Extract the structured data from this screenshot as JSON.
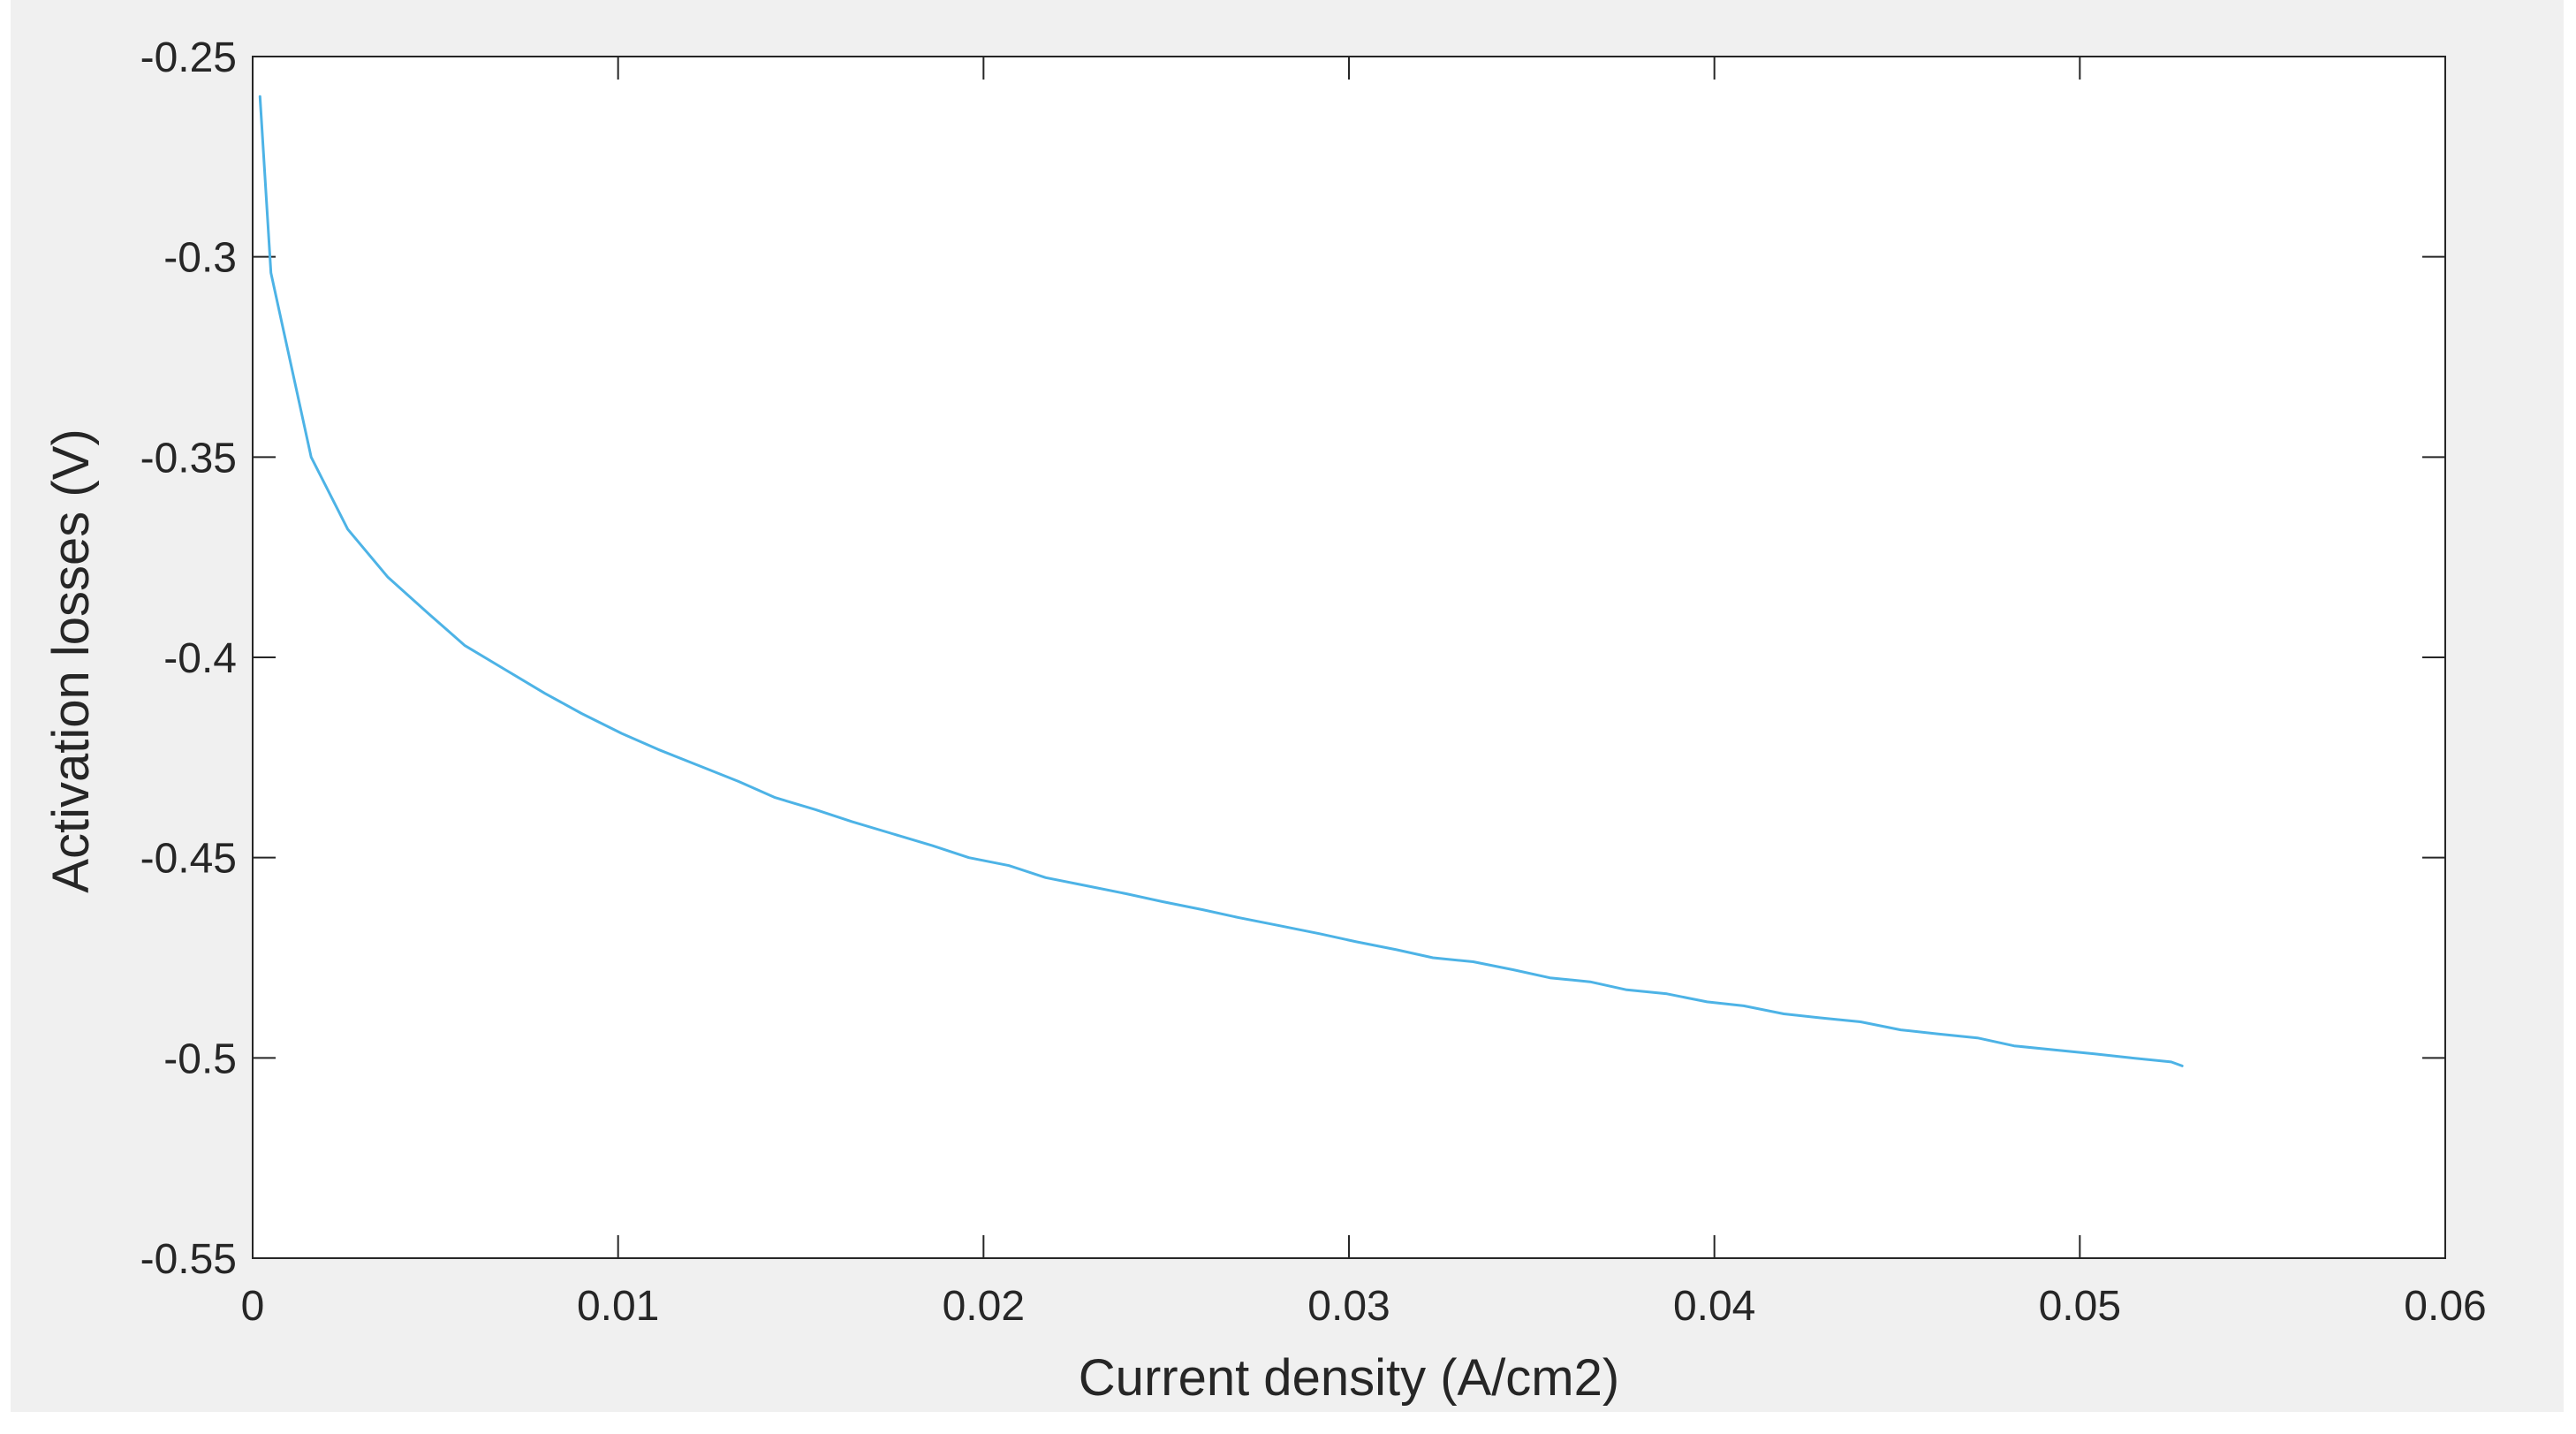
{
  "chart_data": {
    "type": "line",
    "title": "",
    "xlabel": "Current density (A/cm2)",
    "ylabel": "Activation losses (V)",
    "xlim": [
      0,
      0.06
    ],
    "ylim": [
      -0.55,
      -0.25
    ],
    "xticks": [
      0,
      0.01,
      0.02,
      0.03,
      0.04,
      0.05,
      0.06
    ],
    "xtick_labels": [
      "0",
      "0.01",
      "0.02",
      "0.03",
      "0.04",
      "0.05",
      "0.06"
    ],
    "yticks": [
      -0.25,
      -0.3,
      -0.35,
      -0.4,
      -0.45,
      -0.5,
      -0.55
    ],
    "ytick_labels": [
      "-0.25",
      "-0.3",
      "-0.35",
      "-0.4",
      "-0.45",
      "-0.5",
      "-0.55"
    ],
    "grid": false,
    "series": [
      {
        "color": "#4db3e6",
        "x": [
          0.0002,
          0.0005,
          0.0016,
          0.0026,
          0.0037,
          0.0048,
          0.0058,
          0.0069,
          0.008,
          0.009,
          0.0101,
          0.0111,
          0.0122,
          0.0133,
          0.0143,
          0.0154,
          0.0164,
          0.0175,
          0.0186,
          0.0196,
          0.0207,
          0.0217,
          0.0228,
          0.0239,
          0.0249,
          0.026,
          0.027,
          0.0281,
          0.0292,
          0.0302,
          0.0313,
          0.0323,
          0.0334,
          0.0345,
          0.0355,
          0.0366,
          0.0376,
          0.0387,
          0.0398,
          0.0408,
          0.0419,
          0.0429,
          0.044,
          0.0451,
          0.0461,
          0.0472,
          0.0482,
          0.0493,
          0.0504,
          0.0514,
          0.0525,
          0.0528
        ],
        "y": [
          -0.26,
          -0.304,
          -0.35,
          -0.368,
          -0.38,
          -0.389,
          -0.397,
          -0.403,
          -0.409,
          -0.414,
          -0.419,
          -0.423,
          -0.427,
          -0.431,
          -0.435,
          -0.438,
          -0.441,
          -0.444,
          -0.447,
          -0.45,
          -0.452,
          -0.455,
          -0.457,
          -0.459,
          -0.461,
          -0.463,
          -0.465,
          -0.467,
          -0.469,
          -0.471,
          -0.473,
          -0.475,
          -0.476,
          -0.478,
          -0.48,
          -0.481,
          -0.483,
          -0.484,
          -0.486,
          -0.487,
          -0.489,
          -0.49,
          -0.491,
          -0.493,
          -0.494,
          -0.495,
          -0.497,
          -0.498,
          -0.499,
          -0.5,
          -0.501,
          -0.502
        ]
      }
    ]
  }
}
